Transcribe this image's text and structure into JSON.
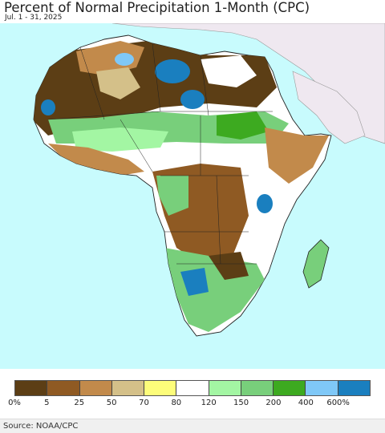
{
  "header": {
    "title": "Percent of Normal Precipitation 1-Month (CPC)",
    "subtitle": "Jul. 1 - 31, 2025"
  },
  "map": {
    "region": "Africa",
    "colors": {
      "ocean": "#c8fbfd",
      "non_africa_land": "#efe8f0",
      "border": "#222222"
    }
  },
  "legend": {
    "colors": [
      "#5c3e15",
      "#8f5a23",
      "#c28a4b",
      "#d4c089",
      "#fdfd7a",
      "#ffffff",
      "#a3f6a3",
      "#78cf7b",
      "#3daa20",
      "#7fc8f7",
      "#1a7fbf"
    ],
    "labels": [
      "0%",
      "5",
      "25",
      "50",
      "70",
      "80",
      "120",
      "150",
      "200",
      "400",
      "600%"
    ]
  },
  "footer": {
    "source": "Source: NOAA/CPC"
  }
}
